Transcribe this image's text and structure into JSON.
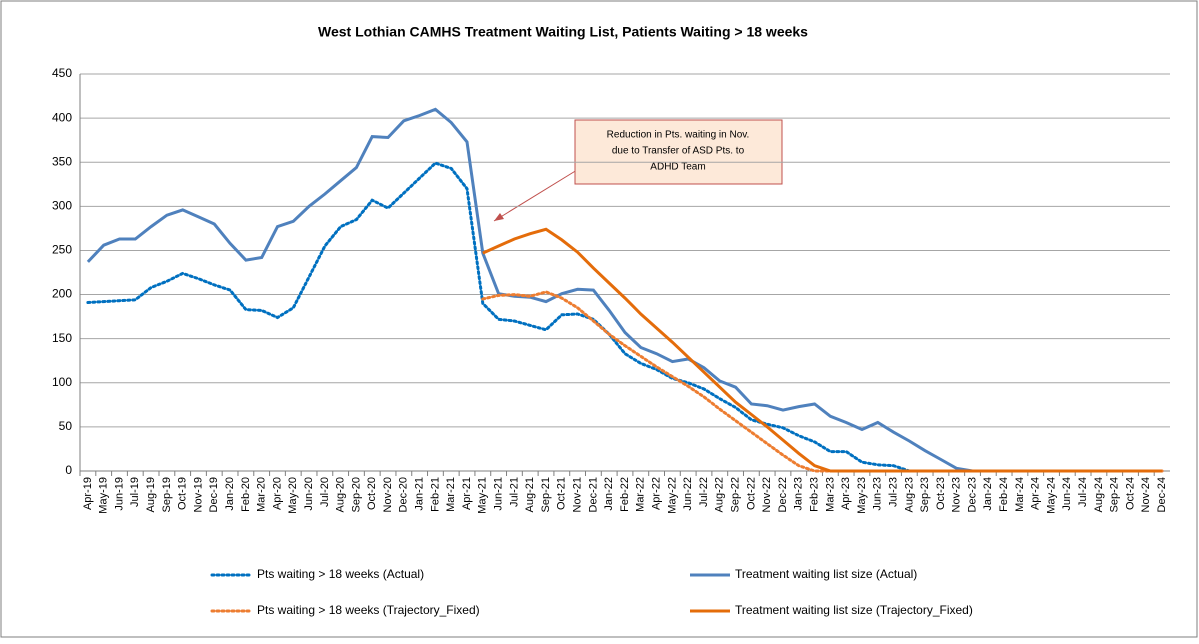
{
  "chart_data": {
    "type": "line",
    "title": "West Lothian CAMHS Treatment Waiting List, Patients Waiting > 18 weeks",
    "categories": [
      "Apr-19",
      "May-19",
      "Jun-19",
      "Jul-19",
      "Aug-19",
      "Sep-19",
      "Oct-19",
      "Nov-19",
      "Dec-19",
      "Jan-20",
      "Feb-20",
      "Mar-20",
      "Apr-20",
      "May-20",
      "Jun-20",
      "Jul-20",
      "Aug-20",
      "Sep-20",
      "Oct-20",
      "Nov-20",
      "Dec-20",
      "Jan-21",
      "Feb-21",
      "Mar-21",
      "Apr-21",
      "May-21",
      "Jun-21",
      "Jul-21",
      "Aug-21",
      "Sep-21",
      "Oct-21",
      "Nov-21",
      "Dec-21",
      "Jan-22",
      "Feb-22",
      "Mar-22",
      "Apr-22",
      "May-22",
      "Jun-22",
      "Jul-22",
      "Aug-22",
      "Sep-22",
      "Oct-22",
      "Nov-22",
      "Dec-22",
      "Jan-23",
      "Feb-23",
      "Mar-23",
      "Apr-23",
      "May-23",
      "Jun-23",
      "Jul-23",
      "Aug-23",
      "Sep-23",
      "Oct-23",
      "Nov-23",
      "Dec-23",
      "Jan-24",
      "Feb-24",
      "Mar-24",
      "Apr-24",
      "May-24",
      "Jun-24",
      "Jul-24",
      "Aug-24",
      "Sep-24",
      "Oct-24",
      "Nov-24",
      "Dec-24"
    ],
    "series": [
      {
        "name": "Pts waiting > 18 weeks (Actual)",
        "color": "#0070c0",
        "style": "dotted",
        "values": [
          191,
          192,
          193,
          194,
          208,
          215,
          224,
          218,
          211,
          205,
          183,
          182,
          174,
          185,
          220,
          255,
          277,
          285,
          307,
          298,
          315,
          332,
          349,
          343,
          320,
          190,
          172,
          170,
          165,
          160,
          177,
          178,
          172,
          155,
          133,
          122,
          115,
          105,
          100,
          93,
          82,
          72,
          58,
          53,
          49,
          40,
          33,
          22,
          22,
          10,
          7,
          6,
          0,
          0,
          0,
          0,
          0,
          0,
          0,
          0,
          0,
          0,
          0,
          0,
          0,
          0,
          0,
          0,
          0
        ]
      },
      {
        "name": "Treatment waiting list size (Actual)",
        "color": "#4f81bd",
        "style": "solid",
        "values": [
          237,
          256,
          263,
          263,
          277,
          290,
          296,
          288,
          280,
          258,
          239,
          242,
          277,
          283,
          300,
          314,
          329,
          344,
          379,
          378,
          397,
          403,
          410,
          395,
          373,
          247,
          201,
          198,
          197,
          192,
          201,
          206,
          205,
          182,
          157,
          140,
          133,
          124,
          127,
          117,
          102,
          95,
          76,
          74,
          69,
          73,
          76,
          62,
          55,
          47,
          55,
          44,
          34,
          23,
          13,
          3,
          0,
          0,
          0,
          0,
          0,
          0,
          0,
          0,
          0,
          0,
          0,
          0,
          0
        ]
      },
      {
        "name": "Pts waiting > 18 weeks (Trajectory_Fixed)",
        "color": "#ed7d31",
        "style": "dotted",
        "values": [
          null,
          null,
          null,
          null,
          null,
          null,
          null,
          null,
          null,
          null,
          null,
          null,
          null,
          null,
          null,
          null,
          null,
          null,
          null,
          null,
          null,
          null,
          null,
          null,
          null,
          195,
          199,
          200,
          198,
          203,
          196,
          185,
          170,
          155,
          142,
          130,
          118,
          107,
          96,
          84,
          70,
          57,
          44,
          31,
          18,
          6,
          0,
          0,
          0,
          0,
          0,
          0,
          0,
          0,
          0,
          0,
          0,
          0,
          0,
          0,
          0,
          0,
          0,
          0,
          0,
          0,
          0,
          0,
          0
        ]
      },
      {
        "name": "Treatment waiting list size (Trajectory_Fixed)",
        "color": "#e46c0a",
        "style": "solid",
        "values": [
          null,
          null,
          null,
          null,
          null,
          null,
          null,
          null,
          null,
          null,
          null,
          null,
          null,
          null,
          null,
          null,
          null,
          null,
          null,
          null,
          null,
          null,
          null,
          null,
          null,
          247,
          255,
          263,
          269,
          274,
          262,
          248,
          230,
          213,
          196,
          178,
          162,
          146,
          129,
          112,
          95,
          78,
          64,
          50,
          35,
          20,
          6,
          0,
          0,
          0,
          0,
          0,
          0,
          0,
          0,
          0,
          0,
          0,
          0,
          0,
          0,
          0,
          0,
          0,
          0,
          0,
          0,
          0,
          0
        ]
      }
    ],
    "ylim": [
      0,
      450
    ],
    "yticks": [
      0,
      50,
      100,
      150,
      200,
      250,
      300,
      350,
      400,
      450
    ],
    "grid": true,
    "annotation": [
      "Reduction in Pts. waiting in Nov.",
      "due to Transfer of ASD Pts. to",
      "ADHD Team"
    ],
    "legend": "bottom"
  }
}
